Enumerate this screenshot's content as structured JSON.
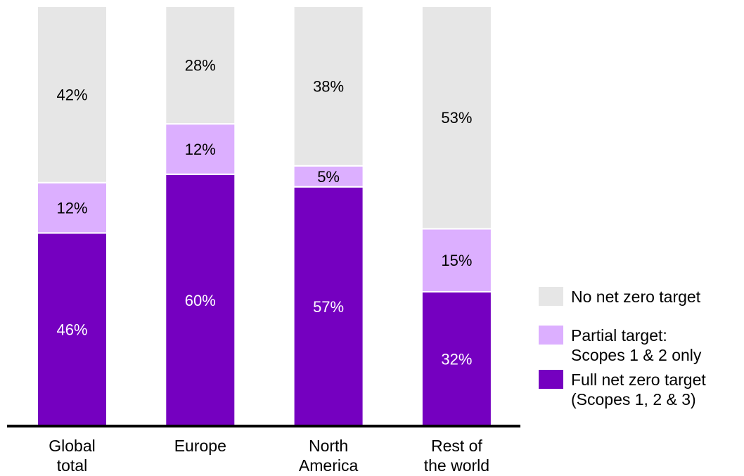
{
  "chart_data": {
    "type": "bar",
    "stacked": true,
    "categories": [
      [
        "Global",
        "total"
      ],
      [
        "Europe"
      ],
      [
        "North",
        "America"
      ],
      [
        "Rest of",
        "the world"
      ]
    ],
    "series": [
      {
        "name": "Full net zero target (Scopes 1, 2 & 3)",
        "legend_lines": [
          "Full net zero target",
          "(Scopes 1, 2 & 3)"
        ],
        "values": [
          46,
          60,
          57,
          32
        ],
        "color": "#7500c0",
        "label_color": "#ffffff"
      },
      {
        "name": "Partial target: Scopes 1 & 2 only",
        "legend_lines": [
          "Partial target:",
          "Scopes 1 & 2 only"
        ],
        "values": [
          12,
          12,
          5,
          15
        ],
        "color": "#dcafff",
        "label_color": "#000000"
      },
      {
        "name": "No net zero target",
        "legend_lines": [
          "No net zero target"
        ],
        "values": [
          42,
          28,
          38,
          53
        ],
        "color": "#e6e6e6",
        "label_color": "#000000"
      }
    ],
    "value_suffix": "%",
    "ylim": [
      0,
      100
    ],
    "grid": false,
    "legend_position": "right",
    "legend_order": [
      2,
      1,
      0
    ],
    "axis_color": "#000000"
  }
}
